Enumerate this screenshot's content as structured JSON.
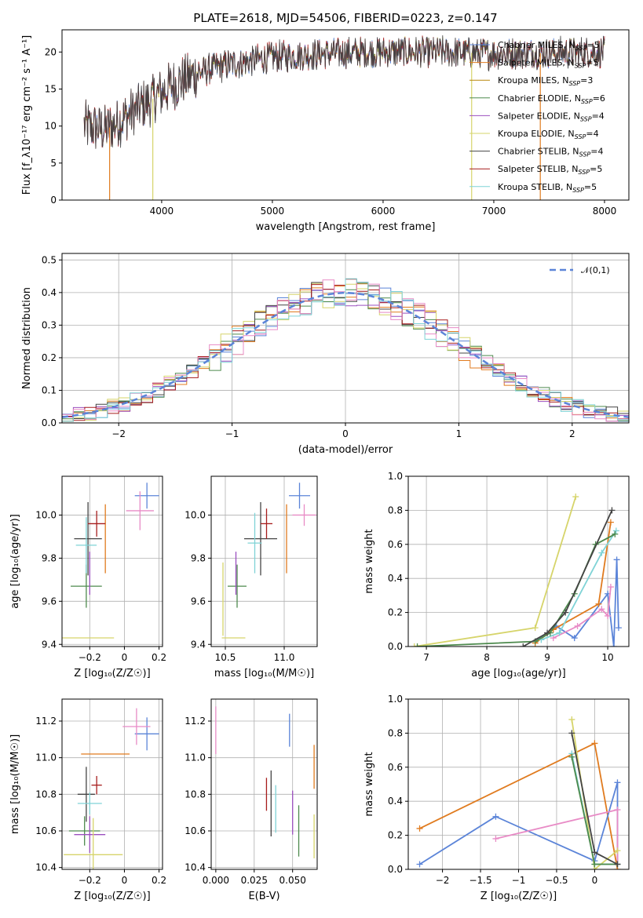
{
  "figure_title": "PLATE=2618, MJD=54506, FIBERID=0223, z=0.147",
  "colors": [
    "#5b84d8",
    "#e07b1f",
    "#4d8a4d",
    "#9b4fbf",
    "#d6d46a",
    "#444444",
    "#a61c1c",
    "#e88bc6",
    "#7fd3d6"
  ],
  "chart_data": [
    {
      "id": "spectrum",
      "type": "line",
      "xlabel": "wavelength [Angstrom, rest frame]",
      "ylabel": "Flux [f_λ10⁻¹⁷ erg cm⁻² s⁻¹ A⁻¹]",
      "xlim": [
        3100,
        8220
      ],
      "ylim": [
        0,
        23
      ],
      "xticks": [
        4000,
        5000,
        6000,
        7000,
        8000
      ],
      "yticks": [
        0,
        5,
        10,
        15,
        20
      ],
      "data_range": [
        3300,
        8000
      ],
      "continuum": [
        [
          3300,
          10.0
        ],
        [
          3500,
          9.5
        ],
        [
          3700,
          11.5
        ],
        [
          3950,
          14.0
        ],
        [
          4100,
          15.5
        ],
        [
          4300,
          17.0
        ],
        [
          4500,
          18.0
        ],
        [
          4800,
          18.8
        ],
        [
          5000,
          19.3
        ],
        [
          5500,
          19.8
        ],
        [
          6000,
          20.0
        ],
        [
          6500,
          20.0
        ],
        [
          7000,
          19.8
        ],
        [
          7500,
          19.9
        ],
        [
          8000,
          20.0
        ]
      ],
      "series": [
        {
          "name": "Chabrier MILES, N_SSP=5",
          "color": "#5b84d8"
        },
        {
          "name": "Salpeter MILES, N_SSP=5",
          "color": "#e07b1f"
        },
        {
          "name": "Kroupa MILES, N_SSP=3",
          "color": "#b8860b"
        },
        {
          "name": "Chabrier ELODIE, N_SSP=6",
          "color": "#4d8a4d"
        },
        {
          "name": "Salpeter ELODIE, N_SSP=4",
          "color": "#9b4fbf"
        },
        {
          "name": "Kroupa ELODIE, N_SSP=4",
          "color": "#d6d46a"
        },
        {
          "name": "Chabrier STELIB, N_SSP=4",
          "color": "#444444"
        },
        {
          "name": "Salpeter STELIB, N_SSP=5",
          "color": "#a61c1c"
        },
        {
          "name": "Kroupa STELIB, N_SSP=5",
          "color": "#7fd3d6"
        }
      ],
      "drops": [
        [
          3530,
          "#e07b1f"
        ],
        [
          3920,
          "#d6d46a"
        ],
        [
          6800,
          "#d6d46a"
        ],
        [
          7420,
          "#e07b1f"
        ]
      ]
    },
    {
      "id": "residuals",
      "type": "histogram",
      "xlabel": "(data-model)/error",
      "ylabel": "Normed distribution",
      "xlim": [
        -2.5,
        2.5
      ],
      "ylim": [
        0,
        0.52
      ],
      "xticks": [
        -2,
        -1,
        0,
        1,
        2
      ],
      "yticks": [
        0.0,
        0.1,
        0.2,
        0.3,
        0.4,
        0.5
      ],
      "bin_edges_range": [
        -2.6,
        2.6
      ],
      "bin_width": 0.1,
      "legend": "𝒩(0,1)",
      "gaussian_color": "#5b84d8"
    },
    {
      "id": "age-vs-z",
      "type": "errorbar",
      "xlabel": "Z [log₁₀(Z/Z☉)]",
      "ylabel": "age [log₁₀(age/yr)]",
      "xlim": [
        -0.36,
        0.22
      ],
      "ylim": [
        9.39,
        10.18
      ],
      "xticks": [
        -0.2,
        0.0,
        0.2
      ],
      "yticks": [
        9.4,
        9.6,
        9.8,
        10.0
      ],
      "points": [
        {
          "x": 0.13,
          "xerr": 0.07,
          "y": 10.09,
          "yerr": 0.06,
          "color": "#5b84d8"
        },
        {
          "x": -0.11,
          "xerr": 0.0,
          "y": 9.89,
          "yerr": 0.16,
          "color": "#e07b1f"
        },
        {
          "x": -0.22,
          "xerr": 0.09,
          "y": 9.67,
          "yerr": 0.1,
          "color": "#4d8a4d"
        },
        {
          "x": -0.2,
          "xerr": 0.0,
          "y": 9.73,
          "yerr": 0.1,
          "color": "#9b4fbf"
        },
        {
          "x": -0.21,
          "xerr": 0.15,
          "y": 9.43,
          "yerr": 0.0,
          "color": "#d6d46a"
        },
        {
          "x": -0.21,
          "xerr": 0.08,
          "y": 9.89,
          "yerr": 0.17,
          "color": "#444444"
        },
        {
          "x": -0.16,
          "xerr": 0.05,
          "y": 9.96,
          "yerr": 0.06,
          "color": "#a61c1c"
        },
        {
          "x": 0.09,
          "xerr": 0.08,
          "y": 10.02,
          "yerr": 0.09,
          "color": "#e88bc6"
        },
        {
          "x": -0.22,
          "xerr": 0.06,
          "y": 9.86,
          "yerr": 0.13,
          "color": "#7fd3d6"
        }
      ]
    },
    {
      "id": "age-vs-mass",
      "type": "errorbar",
      "xlabel": "mass [log₁₀(M/M☉)]",
      "ylabel": "",
      "xlim": [
        10.38,
        11.28
      ],
      "ylim": [
        9.39,
        10.18
      ],
      "xticks": [
        10.5,
        11.0
      ],
      "yticks": [
        9.4,
        9.6,
        9.8,
        10.0
      ],
      "points": [
        {
          "x": 11.13,
          "xerr": 0.09,
          "y": 10.09,
          "yerr": 0.06,
          "color": "#5b84d8"
        },
        {
          "x": 11.02,
          "xerr": 0.0,
          "y": 9.89,
          "yerr": 0.16,
          "color": "#e07b1f"
        },
        {
          "x": 10.6,
          "xerr": 0.08,
          "y": 9.67,
          "yerr": 0.1,
          "color": "#4d8a4d"
        },
        {
          "x": 10.59,
          "xerr": 0.0,
          "y": 9.73,
          "yerr": 0.1,
          "color": "#9b4fbf"
        },
        {
          "x": 10.48,
          "xerr": 0.0,
          "y": 9.61,
          "yerr": 0.17,
          "color": "#d6d46a"
        },
        {
          "x": 10.8,
          "xerr": 0.14,
          "y": 9.89,
          "yerr": 0.17,
          "color": "#444444"
        },
        {
          "x": 10.85,
          "xerr": 0.05,
          "y": 9.96,
          "yerr": 0.07,
          "color": "#a61c1c"
        },
        {
          "x": 11.17,
          "xerr": 0.1,
          "y": 10.0,
          "yerr": 0.05,
          "color": "#e88bc6"
        },
        {
          "x": 10.75,
          "xerr": 0.06,
          "y": 9.87,
          "yerr": 0.14,
          "color": "#7fd3d6"
        },
        {
          "x": 10.57,
          "xerr": 0.1,
          "y": 9.43,
          "yerr": 0.0,
          "color": "#d6d46a"
        }
      ]
    },
    {
      "id": "weight-vs-age",
      "type": "line",
      "xlabel": "age [log₁₀(age/yr)]",
      "ylabel": "mass weight",
      "xlim": [
        6.7,
        10.35
      ],
      "ylim": [
        0,
        1
      ],
      "xticks": [
        7,
        8,
        9,
        10
      ],
      "yticks": [
        0.0,
        0.2,
        0.4,
        0.6,
        0.8,
        1.0
      ],
      "series": [
        {
          "color": "#d6d46a",
          "points": [
            [
              6.8,
              0.0
            ],
            [
              8.8,
              0.11
            ],
            [
              9.47,
              0.88
            ]
          ]
        },
        {
          "color": "#5b84d8",
          "points": [
            [
              8.8,
              0.03
            ],
            [
              9.15,
              0.12
            ],
            [
              9.45,
              0.05
            ],
            [
              10.0,
              0.31
            ],
            [
              10.1,
              0.0
            ],
            [
              10.15,
              0.51
            ],
            [
              10.18,
              0.11
            ]
          ]
        },
        {
          "color": "#e07b1f",
          "points": [
            [
              8.8,
              0.02
            ],
            [
              9.1,
              0.1
            ],
            [
              9.85,
              0.25
            ],
            [
              10.05,
              0.73
            ]
          ]
        },
        {
          "color": "#e88bc6",
          "points": [
            [
              9.1,
              0.05
            ],
            [
              9.5,
              0.12
            ],
            [
              9.9,
              0.22
            ],
            [
              10.0,
              0.18
            ],
            [
              10.05,
              0.35
            ]
          ]
        },
        {
          "color": "#7fd3d6",
          "points": [
            [
              8.9,
              0.04
            ],
            [
              9.2,
              0.08
            ],
            [
              9.9,
              0.55
            ],
            [
              10.14,
              0.68
            ]
          ]
        },
        {
          "color": "#4d8a4d",
          "points": [
            [
              6.85,
              0.0
            ],
            [
              8.8,
              0.03
            ],
            [
              9.05,
              0.08
            ],
            [
              9.45,
              0.31
            ],
            [
              9.8,
              0.6
            ],
            [
              10.12,
              0.66
            ]
          ]
        },
        {
          "color": "#444444",
          "points": [
            [
              8.6,
              0.0
            ],
            [
              9.0,
              0.08
            ],
            [
              9.3,
              0.2
            ],
            [
              10.07,
              0.8
            ]
          ]
        }
      ]
    },
    {
      "id": "mass-vs-z",
      "type": "errorbar",
      "xlabel": "Z [log₁₀(Z/Z☉)]",
      "ylabel": "mass [log₁₀(M/M☉)]",
      "xlim": [
        -0.36,
        0.22
      ],
      "ylim": [
        10.39,
        11.32
      ],
      "xticks": [
        -0.2,
        0.0,
        0.2
      ],
      "yticks": [
        10.4,
        10.6,
        10.8,
        11.0,
        11.2
      ],
      "points": [
        {
          "x": 0.13,
          "xerr": 0.07,
          "y": 11.13,
          "yerr": 0.09,
          "color": "#5b84d8"
        },
        {
          "x": -0.11,
          "xerr": 0.14,
          "y": 11.02,
          "yerr": 0.0,
          "color": "#e07b1f"
        },
        {
          "x": -0.23,
          "xerr": 0.09,
          "y": 10.6,
          "yerr": 0.08,
          "color": "#4d8a4d"
        },
        {
          "x": -0.2,
          "xerr": 0.09,
          "y": 10.58,
          "yerr": 0.1,
          "color": "#9b4fbf"
        },
        {
          "x": -0.18,
          "xerr": 0.17,
          "y": 10.47,
          "yerr": 0.2,
          "color": "#d6d46a"
        },
        {
          "x": -0.22,
          "xerr": 0.05,
          "y": 10.8,
          "yerr": 0.15,
          "color": "#444444"
        },
        {
          "x": -0.16,
          "xerr": 0.03,
          "y": 10.85,
          "yerr": 0.05,
          "color": "#a61c1c"
        },
        {
          "x": 0.07,
          "xerr": 0.08,
          "y": 11.17,
          "yerr": 0.1,
          "color": "#e88bc6"
        },
        {
          "x": -0.2,
          "xerr": 0.07,
          "y": 10.75,
          "yerr": 0.06,
          "color": "#7fd3d6"
        }
      ]
    },
    {
      "id": "mass-vs-ebv",
      "type": "errorbar",
      "xlabel": "E(B-V)",
      "ylabel": "",
      "xlim": [
        -0.003,
        0.066
      ],
      "ylim": [
        10.39,
        11.32
      ],
      "xticks": [
        0.0,
        0.025,
        0.05
      ],
      "ytick_labels": [
        "10.4",
        "10.6",
        "10.8",
        "11.0",
        "11.2"
      ],
      "yticks": [
        10.4,
        10.6,
        10.8,
        11.0,
        11.2
      ],
      "points": [
        {
          "x": 0.0,
          "y": 11.15,
          "yerr": 0.13,
          "color": "#e88bc6"
        },
        {
          "x": 0.033,
          "y": 10.8,
          "yerr": 0.09,
          "color": "#a61c1c"
        },
        {
          "x": 0.036,
          "y": 10.75,
          "yerr": 0.18,
          "color": "#444444"
        },
        {
          "x": 0.039,
          "y": 10.72,
          "yerr": 0.13,
          "color": "#7fd3d6"
        },
        {
          "x": 0.048,
          "y": 11.15,
          "yerr": 0.09,
          "color": "#5b84d8"
        },
        {
          "x": 0.05,
          "y": 10.7,
          "yerr": 0.12,
          "color": "#9b4fbf"
        },
        {
          "x": 0.054,
          "y": 10.6,
          "yerr": 0.14,
          "color": "#4d8a4d"
        },
        {
          "x": 0.064,
          "y": 10.95,
          "yerr": 0.12,
          "color": "#e07b1f"
        },
        {
          "x": 0.064,
          "y": 10.57,
          "yerr": 0.12,
          "color": "#d6d46a"
        }
      ]
    },
    {
      "id": "weight-vs-z",
      "type": "line",
      "xlabel": "Z [log₁₀(Z/Z☉)]",
      "ylabel": "mass weight",
      "xlim": [
        -2.45,
        0.45
      ],
      "ylim": [
        0,
        1
      ],
      "xticks": [
        -2.0,
        -1.5,
        -1.0,
        -0.5,
        0.0
      ],
      "yticks": [
        0.0,
        0.2,
        0.4,
        0.6,
        0.8,
        1.0
      ],
      "series": [
        {
          "color": "#e07b1f",
          "points": [
            [
              -2.3,
              0.24
            ],
            [
              0.0,
              0.74
            ],
            [
              0.3,
              0.0
            ]
          ]
        },
        {
          "color": "#5b84d8",
          "points": [
            [
              -2.3,
              0.03
            ],
            [
              -1.3,
              0.31
            ],
            [
              0.0,
              0.05
            ],
            [
              0.3,
              0.51
            ],
            [
              0.3,
              0.03
            ]
          ]
        },
        {
          "color": "#e88bc6",
          "points": [
            [
              -1.3,
              0.18
            ],
            [
              0.3,
              0.35
            ],
            [
              0.3,
              0.03
            ]
          ]
        },
        {
          "color": "#d6d46a",
          "points": [
            [
              -0.3,
              0.88
            ],
            [
              0.0,
              0.0
            ],
            [
              0.3,
              0.11
            ]
          ]
        },
        {
          "color": "#7fd3d6",
          "points": [
            [
              -0.3,
              0.68
            ],
            [
              0.0,
              0.03
            ],
            [
              0.3,
              0.03
            ]
          ]
        },
        {
          "color": "#4d8a4d",
          "points": [
            [
              -0.3,
              0.66
            ],
            [
              0.0,
              0.03
            ],
            [
              0.3,
              0.03
            ]
          ]
        },
        {
          "color": "#444444",
          "points": [
            [
              -0.3,
              0.8
            ],
            [
              0.0,
              0.1
            ],
            [
              0.3,
              0.03
            ]
          ]
        }
      ]
    }
  ]
}
